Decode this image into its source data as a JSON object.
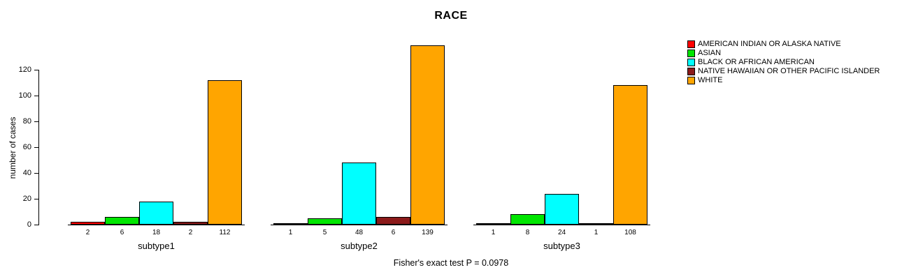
{
  "title": "RACE",
  "footer": "Fisher's exact test P = 0.0978",
  "chart_data": {
    "type": "bar",
    "title": "RACE",
    "xlabel": "",
    "ylabel": "number of cases",
    "annotation": "Fisher's exact test P = 0.0978",
    "categories": [
      "subtype1",
      "subtype2",
      "subtype3"
    ],
    "series": [
      {
        "name": "AMERICAN INDIAN OR ALASKA NATIVE",
        "color": "#FF0000",
        "values": [
          2,
          1,
          1
        ]
      },
      {
        "name": "ASIAN",
        "color": "#00E500",
        "values": [
          6,
          5,
          8
        ]
      },
      {
        "name": "BLACK OR AFRICAN AMERICAN",
        "color": "#00FFFF",
        "values": [
          18,
          48,
          24
        ]
      },
      {
        "name": "NATIVE HAWAIIAN OR OTHER PACIFIC ISLANDER",
        "color": "#8B1A1A",
        "values": [
          2,
          6,
          1
        ]
      },
      {
        "name": "WHITE",
        "color": "#FFA500",
        "values": [
          112,
          139,
          108
        ]
      }
    ],
    "yticks": [
      0,
      20,
      40,
      60,
      80,
      100,
      120
    ],
    "ylim": [
      0,
      139
    ],
    "grid": false,
    "legend_position": "top-right"
  }
}
